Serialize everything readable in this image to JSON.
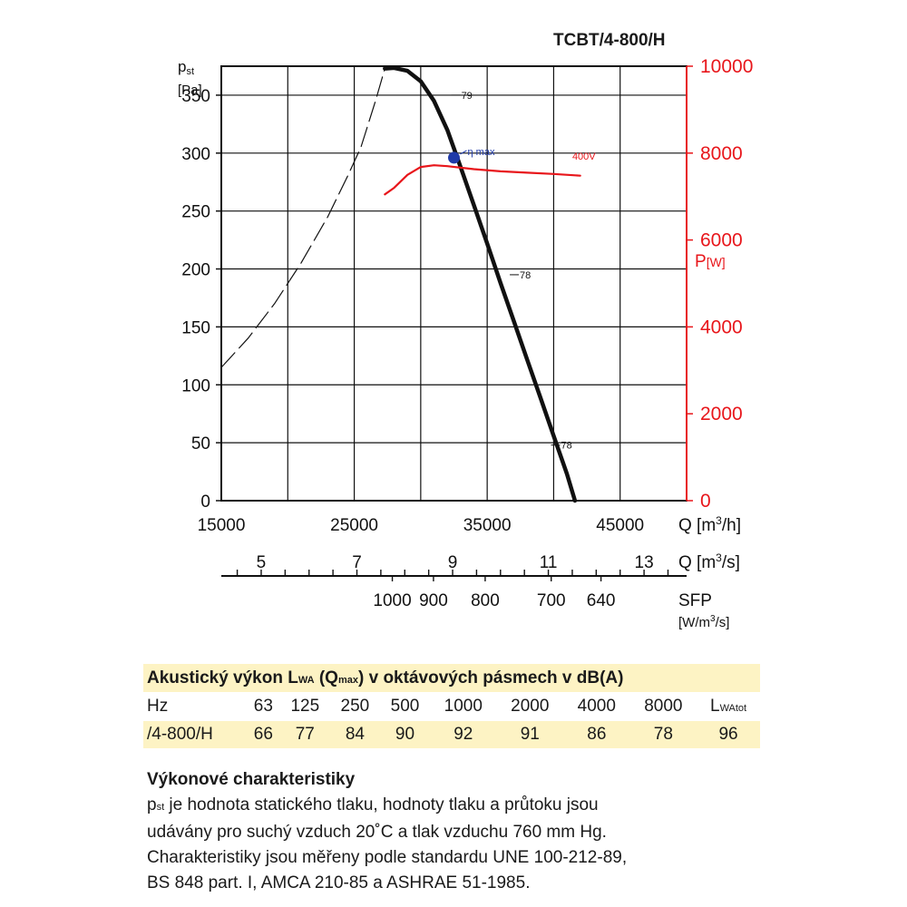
{
  "model": "TCBT/4-800/H",
  "colors": {
    "pressure_curve": "#111111",
    "power_curve": "#e8161b",
    "power_axis": "#e8161b",
    "eta_marker": "#1f3aa8",
    "table_fill": "#fdf3c4"
  },
  "chart_data": {
    "type": "line",
    "left_axis": {
      "label": "p",
      "label_sub": "st",
      "unit": "[Pa]",
      "range": [
        0,
        375
      ],
      "ticks": [
        0,
        50,
        100,
        150,
        200,
        250,
        300,
        350
      ]
    },
    "right_axis": {
      "label": "P",
      "unit": "[W]",
      "range": [
        0,
        10000
      ],
      "ticks": [
        0,
        2000,
        4000,
        6000,
        8000,
        10000
      ]
    },
    "x_axis_m3h": {
      "label": "Q [m",
      "sup": "3",
      "tail": "/h]",
      "range": [
        15000,
        50000
      ],
      "ticks": [
        15000,
        25000,
        35000,
        45000
      ]
    },
    "x_axis_m3s": {
      "label": "Q [m",
      "sup": "3",
      "tail": "/s]",
      "ticks": [
        5,
        7,
        9,
        11,
        13
      ]
    },
    "sfp_axis": {
      "label": "SFP",
      "unit": "[W/m",
      "sup": "3",
      "tail": "/s]",
      "ticks": [
        "1000",
        "900",
        "800",
        "700",
        "640"
      ],
      "tick_q_m3s": [
        7.74,
        8.6,
        9.68,
        11.06,
        12.1
      ]
    },
    "series": [
      {
        "name": "pressure-stable",
        "axis": "left",
        "points": [
          [
            27300,
            373
          ],
          [
            28000,
            373.5
          ],
          [
            29000,
            371
          ],
          [
            30000,
            362
          ],
          [
            31000,
            345
          ],
          [
            32000,
            320
          ],
          [
            33000,
            288
          ],
          [
            34000,
            255
          ],
          [
            35000,
            222
          ],
          [
            36000,
            188
          ],
          [
            37000,
            155
          ],
          [
            38000,
            122
          ],
          [
            39000,
            89
          ],
          [
            40000,
            56
          ],
          [
            41000,
            23
          ],
          [
            41600,
            0
          ]
        ]
      },
      {
        "name": "pressure-unstable",
        "axis": "left",
        "dashed": true,
        "points": [
          [
            15000,
            115
          ],
          [
            17000,
            140
          ],
          [
            19000,
            170
          ],
          [
            21000,
            205
          ],
          [
            23000,
            245
          ],
          [
            24500,
            280
          ],
          [
            25500,
            305
          ],
          [
            26600,
            345
          ],
          [
            27300,
            373
          ]
        ]
      },
      {
        "name": "400V",
        "axis": "right",
        "points": [
          [
            27300,
            7050
          ],
          [
            28000,
            7200
          ],
          [
            29000,
            7500
          ],
          [
            30000,
            7680
          ],
          [
            31000,
            7720
          ],
          [
            32000,
            7700
          ],
          [
            34000,
            7630
          ],
          [
            36000,
            7580
          ],
          [
            38000,
            7550
          ],
          [
            40000,
            7520
          ],
          [
            42000,
            7480
          ]
        ]
      }
    ],
    "eta_max": {
      "label": "η max",
      "q": 32500,
      "p": 296
    },
    "efficiency_labels": [
      {
        "text": "79",
        "q": 32300,
        "p": 350
      },
      {
        "text": "78",
        "q": 36700,
        "p": 195
      },
      {
        "text": "78",
        "q": 39800,
        "p": 48
      }
    ],
    "series_label": "400V"
  },
  "acoustic": {
    "title_pre": "Akustický výkon L",
    "title_sub": "WA",
    "title_mid": " (Q",
    "title_sub2": "max",
    "title_post": ") v oktávových pásmech v dB(A)",
    "hz_label": "Hz",
    "frequencies": [
      "63",
      "125",
      "250",
      "500",
      "1000",
      "2000",
      "4000",
      "8000"
    ],
    "total_label": "L",
    "total_sub": "WAtot",
    "row_label": "/4-800/H",
    "values": [
      "66",
      "77",
      "84",
      "90",
      "92",
      "91",
      "86",
      "78"
    ],
    "total_value": "96"
  },
  "performance": {
    "heading": "Výkonové charakteristiky",
    "sym": "p",
    "sym_sub": "st",
    "line1": " je hodnota statického tlaku, hodnoty tlaku a průtoku jsou",
    "line2": "udávány pro suchý vzduch 20˚C a tlak vzduchu 760 mm Hg.",
    "line3": "Charakteristiky jsou měřeny podle standardu UNE 100-212-89,",
    "line4": "BS 848 part. I, AMCA 210-85 a ASHRAE 51-1985."
  }
}
